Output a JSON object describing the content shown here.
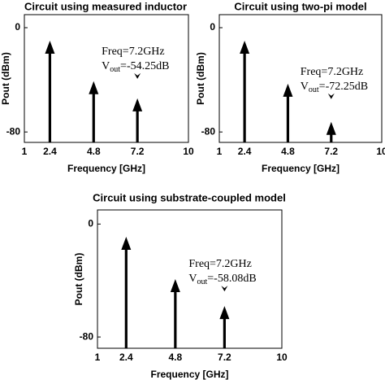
{
  "chart_data": [
    {
      "type": "stem",
      "title": "Circuit using measured inductor",
      "xlabel": "Frequency [GHz]",
      "ylabel": "Pout (dBm)",
      "x": [
        2.4,
        4.8,
        7.2
      ],
      "values": [
        -10,
        -41,
        -54.25
      ],
      "color": "#000000",
      "xlim": [
        1,
        10
      ],
      "ylim": [
        -88,
        10
      ],
      "xticks": [
        1,
        2.4,
        4.8,
        7.2,
        10
      ],
      "yticks": [
        0,
        -80
      ],
      "annotation": {
        "freq": "Freq=7.2GHz",
        "v": "V",
        "sub": "out",
        "rest": "=-54.25dB"
      }
    },
    {
      "type": "stem",
      "title": "Circuit using two-pi model",
      "xlabel": "Frequency [GHz]",
      "ylabel": "Pout (dBm)",
      "x": [
        2.4,
        4.8,
        7.2
      ],
      "values": [
        -10,
        -43,
        -72.25
      ],
      "color": "#000000",
      "xlim": [
        1,
        10
      ],
      "ylim": [
        -88,
        10
      ],
      "xticks": [
        1,
        2.4,
        4.8,
        7.2,
        10
      ],
      "yticks": [
        0,
        -80
      ],
      "annotation": {
        "freq": "Freq=7.2GHz",
        "v": "V",
        "sub": "out",
        "rest": "=-72.25dB"
      }
    },
    {
      "type": "stem",
      "title": "Circuit using substrate-coupled model",
      "xlabel": "Frequency [GHz]",
      "ylabel": "Pout (dBm)",
      "x": [
        2.4,
        4.8,
        7.2
      ],
      "values": [
        -9,
        -39,
        -58.08
      ],
      "color": "#000000",
      "xlim": [
        1,
        10
      ],
      "ylim": [
        -88,
        10
      ],
      "xticks": [
        1,
        2.4,
        4.8,
        7.2,
        10
      ],
      "yticks": [
        0,
        -80
      ],
      "annotation": {
        "freq": "Freq=7.2GHz",
        "v": "V",
        "sub": "out",
        "rest": "=-58.08dB"
      }
    }
  ]
}
